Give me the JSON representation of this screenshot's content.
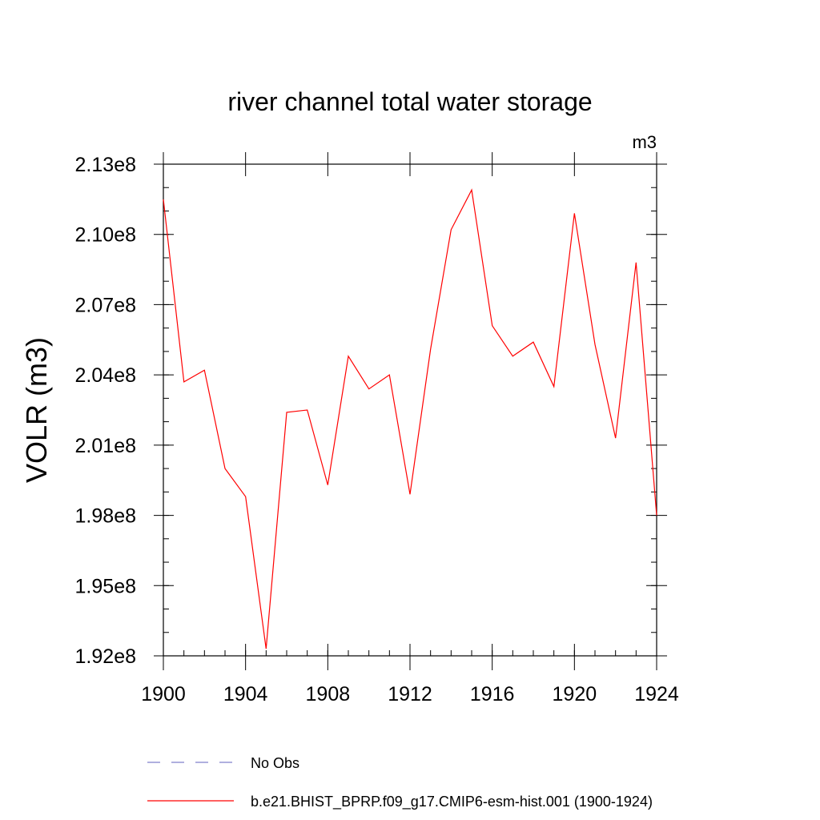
{
  "chart_data": {
    "type": "line",
    "title": "river channel total water storage",
    "units_label": "m3",
    "ylabel": "VOLR  (m3)",
    "xlabel": "",
    "xlim": [
      1900,
      1924
    ],
    "ylim": [
      192000000,
      213000000
    ],
    "x_ticks": [
      1900,
      1904,
      1908,
      1912,
      1916,
      1920,
      1924
    ],
    "x_tick_labels": [
      "1900",
      "1904",
      "1908",
      "1912",
      "1916",
      "1920",
      "1924"
    ],
    "y_ticks": [
      192000000,
      195000000,
      198000000,
      201000000,
      204000000,
      207000000,
      210000000,
      213000000
    ],
    "y_tick_labels": [
      "1.92e8",
      "1.95e8",
      "1.98e8",
      "2.01e8",
      "2.04e8",
      "2.07e8",
      "2.10e8",
      "2.13e8"
    ],
    "y_minor_step": 1000000,
    "x_minor_step": 1,
    "grid": false,
    "series": [
      {
        "name": "b.e21.BHIST_BPRP.f09_g17.CMIP6-esm-hist.001 (1900-1924)",
        "color": "#ff0000",
        "style": "solid",
        "x": [
          1900,
          1901,
          1902,
          1903,
          1904,
          1905,
          1906,
          1907,
          1908,
          1909,
          1910,
          1911,
          1912,
          1913,
          1914,
          1915,
          1916,
          1917,
          1918,
          1919,
          1920,
          1921,
          1922,
          1923,
          1924
        ],
        "values": [
          211500000,
          203700000,
          204200000,
          200000000,
          198800000,
          192300000,
          202400000,
          202500000,
          199300000,
          204800000,
          203400000,
          204000000,
          198900000,
          205100000,
          210200000,
          211900000,
          206100000,
          204800000,
          205400000,
          203500000,
          210900000,
          205300000,
          201300000,
          208800000,
          198000000
        ]
      }
    ],
    "legend": [
      {
        "label": "No Obs",
        "color": "#8080cc",
        "style": "dashed"
      },
      {
        "label": "b.e21.BHIST_BPRP.f09_g17.CMIP6-esm-hist.001 (1900-1924)",
        "color": "#ff0000",
        "style": "solid"
      }
    ]
  }
}
